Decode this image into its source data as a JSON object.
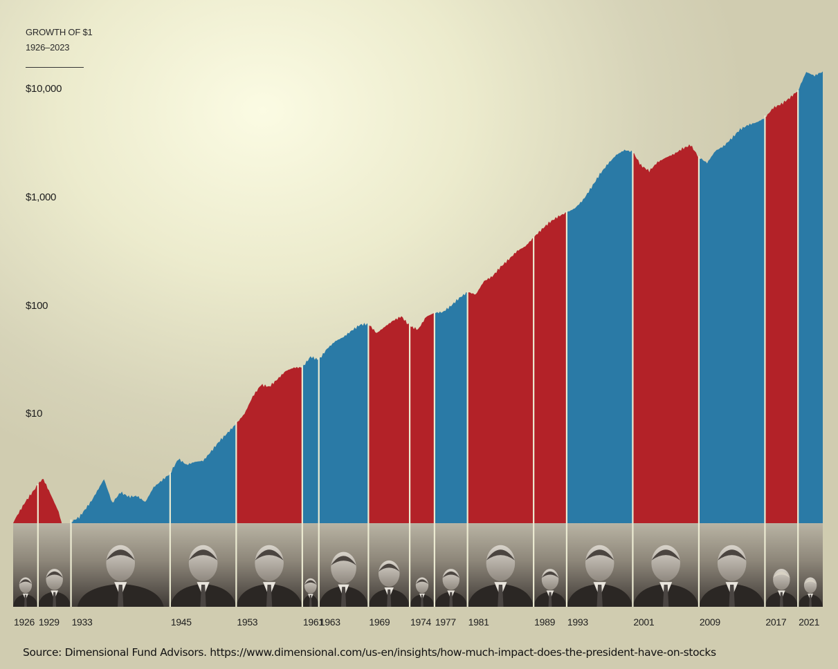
{
  "chart_data": {
    "type": "area",
    "title": "GROWTH OF $1",
    "subtitle": "1926–2023",
    "yscale": "log",
    "ylim": [
      1,
      17000
    ],
    "xlim": [
      1926,
      2024
    ],
    "yticks": [
      {
        "value": 10000,
        "label": "$10,000"
      },
      {
        "value": 1000,
        "label": "$1,000"
      },
      {
        "value": 100,
        "label": "$100"
      },
      {
        "value": 10,
        "label": "$10"
      }
    ],
    "party_colors": {
      "Republican": "#b32228",
      "Democrat": "#2a7aa6"
    },
    "terms": [
      {
        "start": 1926,
        "end": 1929,
        "label": "1926",
        "party": "Republican"
      },
      {
        "start": 1929,
        "end": 1933,
        "label": "1929",
        "party": "Republican"
      },
      {
        "start": 1933,
        "end": 1945,
        "label": "1933",
        "party": "Democrat"
      },
      {
        "start": 1945,
        "end": 1953,
        "label": "1945",
        "party": "Democrat"
      },
      {
        "start": 1953,
        "end": 1961,
        "label": "1953",
        "party": "Republican"
      },
      {
        "start": 1961,
        "end": 1963,
        "label": "1961",
        "party": "Democrat"
      },
      {
        "start": 1963,
        "end": 1969,
        "label": "1963",
        "party": "Democrat"
      },
      {
        "start": 1969,
        "end": 1974,
        "label": "1969",
        "party": "Republican"
      },
      {
        "start": 1974,
        "end": 1977,
        "label": "1974",
        "party": "Republican"
      },
      {
        "start": 1977,
        "end": 1981,
        "label": "1977",
        "party": "Democrat"
      },
      {
        "start": 1981,
        "end": 1989,
        "label": "1981",
        "party": "Republican"
      },
      {
        "start": 1989,
        "end": 1993,
        "label": "1989",
        "party": "Republican"
      },
      {
        "start": 1993,
        "end": 2001,
        "label": "1993",
        "party": "Democrat"
      },
      {
        "start": 2001,
        "end": 2009,
        "label": "2001",
        "party": "Republican"
      },
      {
        "start": 2009,
        "end": 2017,
        "label": "2009",
        "party": "Democrat"
      },
      {
        "start": 2017,
        "end": 2021,
        "label": "2017",
        "party": "Republican"
      },
      {
        "start": 2021,
        "end": 2024,
        "label": "2021",
        "party": "Democrat"
      }
    ],
    "series": [
      {
        "name": "Growth of $1",
        "points": [
          [
            1926,
            1.0
          ],
          [
            1927.5,
            1.55
          ],
          [
            1929.6,
            2.6
          ],
          [
            1930.5,
            1.9
          ],
          [
            1931.5,
            1.3
          ],
          [
            1932.5,
            0.68
          ],
          [
            1933,
            1.05
          ],
          [
            1934,
            1.15
          ],
          [
            1935.5,
            1.6
          ],
          [
            1937,
            2.5
          ],
          [
            1938,
            1.5
          ],
          [
            1939,
            1.9
          ],
          [
            1940,
            1.75
          ],
          [
            1941,
            1.8
          ],
          [
            1942,
            1.6
          ],
          [
            1943,
            2.2
          ],
          [
            1945,
            2.9
          ],
          [
            1946,
            3.9
          ],
          [
            1947,
            3.4
          ],
          [
            1948,
            3.6
          ],
          [
            1949,
            3.7
          ],
          [
            1950,
            4.6
          ],
          [
            1951,
            5.8
          ],
          [
            1952,
            7.0
          ],
          [
            1953,
            8.5
          ],
          [
            1954,
            10.5
          ],
          [
            1955,
            15.0
          ],
          [
            1956,
            19.0
          ],
          [
            1957,
            18.0
          ],
          [
            1958,
            21.0
          ],
          [
            1959,
            25.0
          ],
          [
            1960,
            27.0
          ],
          [
            1961,
            27.5
          ],
          [
            1962,
            35.0
          ],
          [
            1963,
            33.0
          ],
          [
            1964,
            42.0
          ],
          [
            1965,
            49.0
          ],
          [
            1966,
            53.0
          ],
          [
            1967,
            60.0
          ],
          [
            1968,
            67.0
          ],
          [
            1969,
            68.0
          ],
          [
            1970,
            56.0
          ],
          [
            1971,
            65.0
          ],
          [
            1972,
            75.0
          ],
          [
            1973,
            83.0
          ],
          [
            1974,
            68.0
          ],
          [
            1975,
            63.0
          ],
          [
            1976,
            82.0
          ],
          [
            1977,
            88.0
          ],
          [
            1978,
            88.0
          ],
          [
            1979,
            100.0
          ],
          [
            1980,
            118.0
          ],
          [
            1981,
            135.0
          ],
          [
            1982,
            130.0
          ],
          [
            1983,
            175.0
          ],
          [
            1984,
            195.0
          ],
          [
            1985,
            240.0
          ],
          [
            1986,
            280.0
          ],
          [
            1987,
            330.0
          ],
          [
            1988,
            360.0
          ],
          [
            1989,
            430.0
          ],
          [
            1990,
            510.0
          ],
          [
            1991,
            600.0
          ],
          [
            1992,
            680.0
          ],
          [
            1993,
            750.0
          ],
          [
            1994,
            830.0
          ],
          [
            1995,
            1000.0
          ],
          [
            1996,
            1300.0
          ],
          [
            1997,
            1700.0
          ],
          [
            1998,
            2100.0
          ],
          [
            1999,
            2500.0
          ],
          [
            2000,
            2750.0
          ],
          [
            2001,
            2650.0
          ],
          [
            2002,
            2000.0
          ],
          [
            2003,
            1800.0
          ],
          [
            2004,
            2200.0
          ],
          [
            2005,
            2450.0
          ],
          [
            2006,
            2650.0
          ],
          [
            2007,
            2950.0
          ],
          [
            2008,
            3150.0
          ],
          [
            2009,
            2400.0
          ],
          [
            2010,
            2100.0
          ],
          [
            2011,
            2700.0
          ],
          [
            2012,
            3000.0
          ],
          [
            2013,
            3600.0
          ],
          [
            2014,
            4400.0
          ],
          [
            2015,
            4900.0
          ],
          [
            2016,
            5200.0
          ],
          [
            2017,
            5700.0
          ],
          [
            2018,
            7000.0
          ],
          [
            2019,
            7500.0
          ],
          [
            2020,
            8400.0
          ],
          [
            2021,
            9800.0
          ],
          [
            2022,
            14500.0
          ],
          [
            2023,
            13500.0
          ],
          [
            2024,
            15000.0
          ]
        ]
      }
    ],
    "xtick_labels": [
      "1926",
      "1929",
      "1933",
      "1945",
      "1953",
      "1961",
      "1963",
      "1969",
      "1974",
      "1977",
      "1981",
      "1989",
      "1993",
      "2001",
      "2009",
      "2017",
      "2021"
    ]
  },
  "source": "Source: Dimensional Fund Advisors. https://www.dimensional.com/us-en/insights/how-much-impact-does-the-president-have-on-stocks"
}
